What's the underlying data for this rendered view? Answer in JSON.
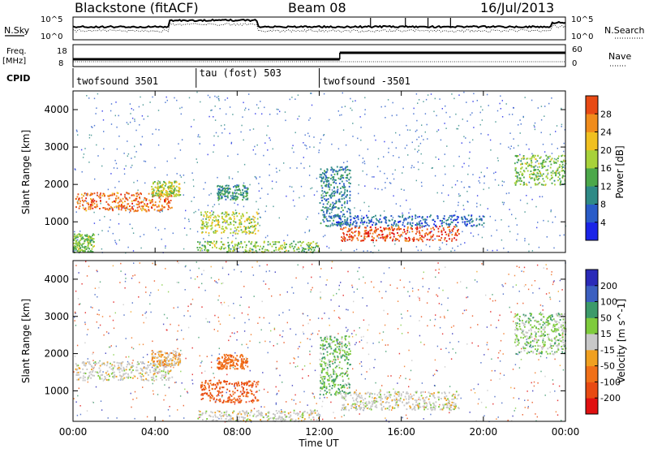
{
  "header": {
    "station": "Blackstone (fitACF)",
    "beam": "Beam 08",
    "date": "16/Jul/2013"
  },
  "strip_labels": {
    "nsky": "N.Sky",
    "nsearch": "N.Search",
    "freq_top": "Freq.",
    "freq_unit": "[MHz]",
    "cpid": "CPID",
    "nave": "Nave",
    "nsky_ticks": [
      "10^5",
      "10^0"
    ],
    "nsearch_ticks": [
      "10^5",
      "10^0"
    ],
    "freq_ticks": [
      "18",
      "8"
    ],
    "nave_ticks": [
      "60",
      "0"
    ]
  },
  "cpid_segments": [
    {
      "label": "twofsound 3501",
      "start_hour": 0
    },
    {
      "label": "tau (fost) 503",
      "start_hour": 6
    },
    {
      "label": "twofsound -3501",
      "start_hour": 12
    }
  ],
  "xaxis": {
    "label": "Time UT",
    "ticks": [
      "00:00",
      "04:00",
      "08:00",
      "12:00",
      "16:00",
      "20:00",
      "00:00"
    ]
  },
  "yaxis": {
    "label": "Slant Range [km]",
    "ticks": [
      "1000",
      "2000",
      "3000",
      "4000"
    ]
  },
  "power_scale": {
    "label": "Power [dB]",
    "ticks": [
      "4",
      "8",
      "12",
      "16",
      "20",
      "24",
      "28"
    ],
    "colors": [
      "#1a24e8",
      "#2a5cc8",
      "#2f8a86",
      "#4ca84a",
      "#a8d23a",
      "#f0c020",
      "#f08c1c",
      "#e84a14",
      "#e01010"
    ]
  },
  "velocity_scale": {
    "label": "Velocity [m s^-1]",
    "ticks": [
      "200",
      "100",
      "50",
      "15",
      "-15",
      "-50",
      "-100",
      "-200"
    ],
    "colors": [
      "#2a2ab8",
      "#3b5fc0",
      "#3c9a6a",
      "#7ecb3c",
      "#c8c8c8",
      "#f0a020",
      "#f07018",
      "#e84a12",
      "#e01010"
    ]
  },
  "chart_data": {
    "type": "heatmap",
    "x_hours": [
      0,
      24
    ],
    "ylim": [
      180,
      4500
    ],
    "power_regions": [
      {
        "t0": 0.1,
        "t1": 4.8,
        "r0": 1300,
        "r1": 1800,
        "db": 24
      },
      {
        "t0": 3.8,
        "t1": 5.2,
        "r0": 1700,
        "r1": 2100,
        "db": 16
      },
      {
        "t0": 0.0,
        "t1": 1.0,
        "r0": 200,
        "r1": 700,
        "db": 14
      },
      {
        "t0": 6.2,
        "t1": 9.0,
        "r0": 700,
        "r1": 1300,
        "db": 16
      },
      {
        "t0": 7.0,
        "t1": 8.5,
        "r0": 1600,
        "r1": 2000,
        "db": 10
      },
      {
        "t0": 6.0,
        "t1": 12.0,
        "r0": 200,
        "r1": 500,
        "db": 14
      },
      {
        "t0": 13.0,
        "t1": 18.8,
        "r0": 500,
        "r1": 900,
        "db": 26
      },
      {
        "t0": 12.0,
        "t1": 13.5,
        "r0": 900,
        "r1": 2500,
        "db": 8
      },
      {
        "t0": 21.5,
        "t1": 24.0,
        "r0": 2000,
        "r1": 2800,
        "db": 14
      },
      {
        "t0": 12.8,
        "t1": 20.0,
        "r0": 900,
        "r1": 1200,
        "db": 6
      }
    ],
    "velocity_regions": [
      {
        "t0": 0.1,
        "t1": 4.8,
        "r0": 1300,
        "r1": 1800,
        "v": 0
      },
      {
        "t0": 3.8,
        "t1": 5.2,
        "r0": 1700,
        "r1": 2100,
        "v": -20
      },
      {
        "t0": 6.2,
        "t1": 9.0,
        "r0": 700,
        "r1": 1300,
        "v": -80
      },
      {
        "t0": 7.0,
        "t1": 8.5,
        "r0": 1600,
        "r1": 2000,
        "v": -60
      },
      {
        "t0": 6.0,
        "t1": 12.0,
        "r0": 200,
        "r1": 500,
        "v": 0
      },
      {
        "t0": 13.0,
        "t1": 18.8,
        "r0": 500,
        "r1": 1000,
        "v": 0
      },
      {
        "t0": 12.0,
        "t1": 13.5,
        "r0": 900,
        "r1": 2500,
        "v": 30
      },
      {
        "t0": 21.5,
        "t1": 24.0,
        "r0": 2000,
        "r1": 3100,
        "v": 20
      }
    ]
  }
}
